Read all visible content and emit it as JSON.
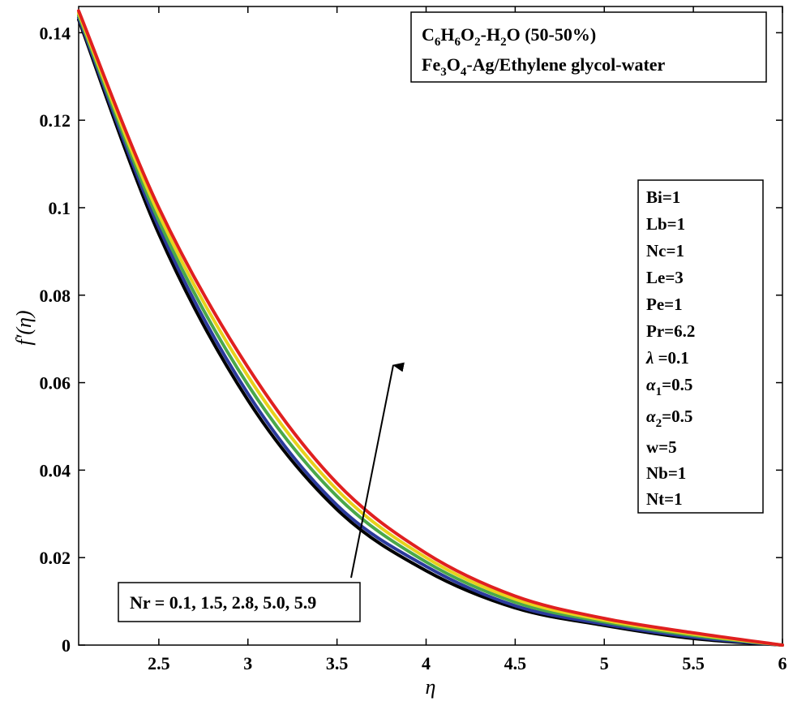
{
  "chart_data": {
    "type": "line",
    "xlabel": "η",
    "ylabel": "f′(η)",
    "xlim": [
      2.05,
      6
    ],
    "ylim": [
      0,
      0.146
    ],
    "grid": false,
    "xticks": [
      2.5,
      3,
      3.5,
      4,
      4.5,
      5,
      5.5,
      6
    ],
    "xtick_labels": [
      "2.5",
      "3",
      "3.5",
      "4",
      "4.5",
      "5",
      "5.5",
      "6"
    ],
    "yticks": [
      0,
      0.02,
      0.04,
      0.06,
      0.08,
      0.1,
      0.12,
      0.14
    ],
    "ytick_labels": [
      "0",
      "0.02",
      "0.04",
      "0.06",
      "0.08",
      "0.1",
      "0.12",
      "0.14"
    ],
    "x": [
      2.05,
      2.5,
      3.0,
      3.5,
      4.0,
      4.5,
      5.0,
      5.5,
      6.0
    ],
    "series": [
      {
        "color": "#000000",
        "values": [
          0.143,
          0.094,
          0.056,
          0.031,
          0.017,
          0.0085,
          0.0045,
          0.0015,
          0.0
        ]
      },
      {
        "color": "#2b3a9c",
        "values": [
          0.1435,
          0.0955,
          0.0575,
          0.032,
          0.018,
          0.009,
          0.0048,
          0.0018,
          0.0
        ]
      },
      {
        "color": "#4aa84a",
        "values": [
          0.144,
          0.097,
          0.0595,
          0.034,
          0.019,
          0.0098,
          0.0053,
          0.0022,
          0.0
        ]
      },
      {
        "color": "#e8d21c",
        "values": [
          0.1445,
          0.0985,
          0.0615,
          0.0355,
          0.02,
          0.0105,
          0.0057,
          0.0025,
          0.0
        ]
      },
      {
        "color": "#e02020",
        "values": [
          0.145,
          0.1,
          0.0635,
          0.037,
          0.021,
          0.0112,
          0.0061,
          0.0028,
          0.0
        ]
      }
    ],
    "annotation": "Nr = 0.1, 1.5, 2.8, 5.0, 5.9",
    "fluid_legend": {
      "line1": {
        "parts": [
          "C",
          "6",
          "H",
          "6",
          "O",
          "2",
          "-H",
          "2",
          "O (50-50%)"
        ]
      },
      "line2": {
        "parts": [
          "Fe",
          "3",
          "O",
          "4",
          "-Ag/Ethylene glycol-water"
        ]
      }
    },
    "params": {
      "bi": "Bi=1",
      "lb": "Lb=1",
      "nc": "Nc=1",
      "le": "Le=3",
      "pe": "Pe=1",
      "pr": "Pr=6.2",
      "lambda_sym": "λ",
      "lambda_val": " =0.1",
      "alpha_sym": "α",
      "alpha1_sub": "1",
      "alpha1_val": "=0.5",
      "alpha2_sub": "2",
      "alpha2_val": "=0.5",
      "w": "w=5",
      "nb": "Nb=1",
      "nt": "Nt=1"
    }
  }
}
